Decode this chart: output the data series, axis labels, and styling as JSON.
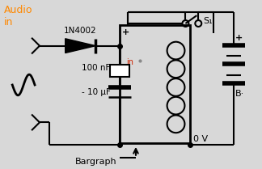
{
  "bg_color": "#d8d8d8",
  "audio_in_label": "Audio\nin",
  "audio_in_color": "#ff8800",
  "in_label": "in",
  "in_label_color": "#cc2200",
  "diode_label": "1N4002",
  "cap_label1": "100 nF",
  "cap_label2": "- 10 μF",
  "bargraph_label": "Bargraph",
  "s1_label": "S₁",
  "b_label": "B·",
  "ov_label": "0 V",
  "plus_ic": "+",
  "plus_batt": "+"
}
